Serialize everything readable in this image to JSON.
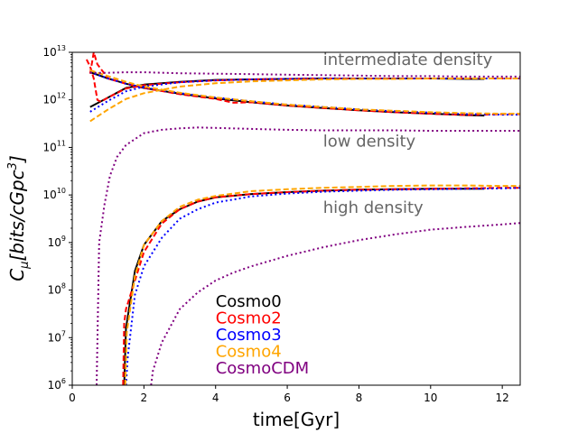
{
  "chart_data": {
    "type": "line",
    "title": "",
    "xlabel": "time[Gyr]",
    "ylabel_base": "C",
    "ylabel_sub": "μ",
    "ylabel_units": "[bits/cGpc",
    "ylabel_units_sup": "3",
    "ylabel_units_close": "]",
    "xlim": [
      0,
      12.5
    ],
    "ylim_log10": [
      6,
      13
    ],
    "yscale": "log",
    "grid": false,
    "x_ticks": [
      0,
      2,
      4,
      6,
      8,
      10,
      12
    ],
    "x_tick_labels": [
      "0",
      "2",
      "4",
      "6",
      "8",
      "10",
      "12"
    ],
    "y_ticks_log10": [
      6,
      7,
      8,
      9,
      10,
      11,
      12,
      13
    ],
    "y_tick_base": "10",
    "y_tick_exps": [
      "6",
      "7",
      "8",
      "9",
      "10",
      "11",
      "12",
      "13"
    ],
    "annotations": [
      {
        "text": "intermediate density",
        "x": 7.0,
        "y_log10": 12.73
      },
      {
        "text": "low density",
        "x": 7.0,
        "y_log10": 11.02
      },
      {
        "text": "high density",
        "x": 7.0,
        "y_log10": 9.62
      }
    ],
    "legend": {
      "placement": "lower-center",
      "entries": [
        {
          "name": "Cosmo0",
          "color": "#000000"
        },
        {
          "name": "Cosmo2",
          "color": "#ff0000"
        },
        {
          "name": "Cosmo3",
          "color": "#0000ff"
        },
        {
          "name": "Cosmo4",
          "color": "#ffa500"
        },
        {
          "name": "CosmoCDM",
          "color": "#800080"
        }
      ]
    },
    "series": [
      {
        "name": "Cosmo0",
        "region": "intermediate",
        "color": "#000000",
        "dash": "solid",
        "x": [
          0.5,
          1.0,
          1.5,
          2,
          3,
          4,
          5,
          6,
          7,
          8,
          9,
          10,
          11,
          11.5
        ],
        "y_log10": [
          11.85,
          12.05,
          12.25,
          12.32,
          12.38,
          12.42,
          12.43,
          12.44,
          12.45,
          12.45,
          12.45,
          12.45,
          12.44,
          12.44
        ]
      },
      {
        "name": "Cosmo0",
        "region": "low",
        "color": "#000000",
        "dash": "solid",
        "x": [
          0.5,
          1.0,
          1.5,
          2,
          3,
          4,
          5,
          6,
          7,
          8,
          9,
          10,
          11,
          11.5
        ],
        "y_log10": [
          12.58,
          12.45,
          12.34,
          12.25,
          12.13,
          12.03,
          11.95,
          11.88,
          11.83,
          11.78,
          11.74,
          11.71,
          11.68,
          11.67
        ]
      },
      {
        "name": "Cosmo0",
        "region": "high",
        "color": "#000000",
        "dash": "solid",
        "x": [
          1.45,
          1.5,
          1.75,
          2,
          2.5,
          3,
          3.5,
          4,
          5,
          6,
          7,
          8,
          9,
          10,
          11,
          11.5
        ],
        "y_log10": [
          6.0,
          7.2,
          8.4,
          8.95,
          9.45,
          9.7,
          9.86,
          9.95,
          10.02,
          10.06,
          10.09,
          10.11,
          10.12,
          10.13,
          10.13,
          10.13
        ]
      },
      {
        "name": "Cosmo2",
        "region": "intermediate",
        "color": "#ff0000",
        "dash": "dashed",
        "x": [
          0.4,
          0.5,
          0.6,
          0.7,
          0.8,
          1.0,
          1.5,
          2,
          3,
          4,
          5,
          6,
          7,
          8,
          9,
          10,
          11,
          12,
          12.5
        ],
        "y_log10": [
          12.85,
          12.7,
          12.45,
          12.0,
          11.96,
          12.05,
          12.24,
          12.31,
          12.37,
          12.41,
          12.43,
          12.44,
          12.45,
          12.45,
          12.45,
          12.45,
          12.45,
          12.45,
          12.45
        ]
      },
      {
        "name": "Cosmo2",
        "region": "low",
        "color": "#ff0000",
        "dash": "dashed",
        "x": [
          0.5,
          0.6,
          0.7,
          1.0,
          1.5,
          2,
          3,
          4,
          4.5,
          5,
          6,
          7,
          8,
          9,
          10,
          11,
          12,
          12.5
        ],
        "y_log10": [
          12.55,
          13.0,
          12.75,
          12.45,
          12.34,
          12.25,
          12.12,
          12.02,
          11.94,
          11.95,
          11.88,
          11.83,
          11.78,
          11.74,
          11.71,
          11.68,
          11.7,
          11.7
        ]
      },
      {
        "name": "Cosmo2",
        "region": "high",
        "color": "#ff0000",
        "dash": "dashed",
        "x": [
          1.42,
          1.45,
          1.5,
          1.75,
          2,
          2.5,
          3,
          3.5,
          4,
          5,
          6,
          7,
          8,
          9,
          10,
          11,
          12,
          12.5
        ],
        "y_log10": [
          6.0,
          7.3,
          7.6,
          8.2,
          8.8,
          9.4,
          9.7,
          9.86,
          9.95,
          10.02,
          10.06,
          10.09,
          10.11,
          10.12,
          10.13,
          10.14,
          10.15,
          10.15
        ]
      },
      {
        "name": "Cosmo3",
        "region": "intermediate",
        "color": "#0000ff",
        "dash": "dotted",
        "x": [
          0.5,
          1.0,
          1.5,
          2,
          3,
          4,
          5,
          6,
          7,
          8,
          9,
          10,
          11,
          12,
          12.5
        ],
        "y_log10": [
          11.75,
          11.98,
          12.18,
          12.28,
          12.37,
          12.41,
          12.43,
          12.44,
          12.45,
          12.45,
          12.45,
          12.45,
          12.45,
          12.45,
          12.45
        ]
      },
      {
        "name": "Cosmo3",
        "region": "low",
        "color": "#0000ff",
        "dash": "dotted",
        "x": [
          0.5,
          1.0,
          1.5,
          2,
          3,
          4,
          5,
          6,
          7,
          8,
          9,
          10,
          11,
          12,
          12.5
        ],
        "y_log10": [
          12.58,
          12.45,
          12.34,
          12.26,
          12.14,
          12.05,
          11.97,
          11.9,
          11.85,
          11.8,
          11.76,
          11.73,
          11.7,
          11.69,
          11.69
        ]
      },
      {
        "name": "Cosmo3",
        "region": "high",
        "color": "#0000ff",
        "dash": "dotted",
        "x": [
          1.5,
          1.55,
          1.75,
          2,
          2.5,
          3,
          3.5,
          4,
          5,
          6,
          7,
          8,
          9,
          10,
          11,
          12,
          12.5
        ],
        "y_log10": [
          6.0,
          6.6,
          7.9,
          8.5,
          9.1,
          9.5,
          9.7,
          9.84,
          9.97,
          10.03,
          10.07,
          10.09,
          10.11,
          10.12,
          10.13,
          10.14,
          10.15
        ]
      },
      {
        "name": "Cosmo4",
        "region": "intermediate",
        "color": "#ffa500",
        "dash": "dashed",
        "x": [
          0.5,
          1.0,
          1.5,
          2,
          3,
          4,
          5,
          6,
          7,
          8,
          9,
          10,
          11,
          12,
          12.5
        ],
        "y_log10": [
          11.55,
          11.8,
          12.02,
          12.14,
          12.28,
          12.35,
          12.39,
          12.41,
          12.43,
          12.44,
          12.44,
          12.45,
          12.45,
          12.45,
          12.45
        ]
      },
      {
        "name": "Cosmo4",
        "region": "low",
        "color": "#ffa500",
        "dash": "dashed",
        "x": [
          0.5,
          1.0,
          1.5,
          2,
          3,
          4,
          5,
          6,
          7,
          8,
          9,
          10,
          11,
          12,
          12.5
        ],
        "y_log10": [
          12.62,
          12.5,
          12.38,
          12.28,
          12.15,
          12.05,
          11.97,
          11.9,
          11.85,
          11.8,
          11.77,
          11.74,
          11.72,
          11.71,
          11.71
        ]
      },
      {
        "name": "Cosmo4",
        "region": "high",
        "color": "#ffa500",
        "dash": "dashed",
        "x": [
          1.48,
          1.52,
          1.75,
          2,
          2.5,
          3,
          3.5,
          4,
          5,
          6,
          7,
          8,
          9,
          10,
          11,
          12,
          12.5
        ],
        "y_log10": [
          6.0,
          7.1,
          8.3,
          8.95,
          9.45,
          9.75,
          9.9,
          9.98,
          10.08,
          10.12,
          10.15,
          10.17,
          10.19,
          10.2,
          10.2,
          10.19,
          10.19
        ]
      },
      {
        "name": "CosmoCDM",
        "region": "intermediate",
        "color": "#800080",
        "dash": "dotted",
        "x": [
          0.5,
          1.0,
          1.5,
          2,
          3,
          4,
          5,
          6,
          7,
          8,
          9,
          10,
          11,
          12,
          12.5
        ],
        "y_log10": [
          12.57,
          12.57,
          12.58,
          12.58,
          12.56,
          12.55,
          12.54,
          12.53,
          12.52,
          12.51,
          12.5,
          12.5,
          12.49,
          12.49,
          12.49
        ]
      },
      {
        "name": "CosmoCDM",
        "region": "low",
        "color": "#800080",
        "dash": "dotted",
        "x": [
          0.68,
          0.75,
          0.9,
          1.05,
          1.25,
          1.5,
          2,
          2.5,
          3,
          3.5,
          4,
          5,
          6,
          7,
          8,
          9,
          10,
          11,
          12,
          12.5
        ],
        "y_log10": [
          6.0,
          9.0,
          9.8,
          10.4,
          10.8,
          11.05,
          11.3,
          11.37,
          11.4,
          11.42,
          11.41,
          11.39,
          11.37,
          11.36,
          11.36,
          11.36,
          11.35,
          11.35,
          11.35,
          11.35
        ]
      },
      {
        "name": "CosmoCDM",
        "region": "high",
        "color": "#800080",
        "dash": "dotted",
        "x": [
          2.2,
          2.25,
          2.5,
          3,
          3.5,
          4,
          4.5,
          5,
          6,
          7,
          8,
          9,
          10,
          11,
          12,
          12.5
        ],
        "y_log10": [
          6.0,
          6.3,
          6.9,
          7.6,
          7.95,
          8.2,
          8.37,
          8.5,
          8.72,
          8.9,
          9.05,
          9.17,
          9.27,
          9.33,
          9.38,
          9.41
        ]
      }
    ]
  }
}
